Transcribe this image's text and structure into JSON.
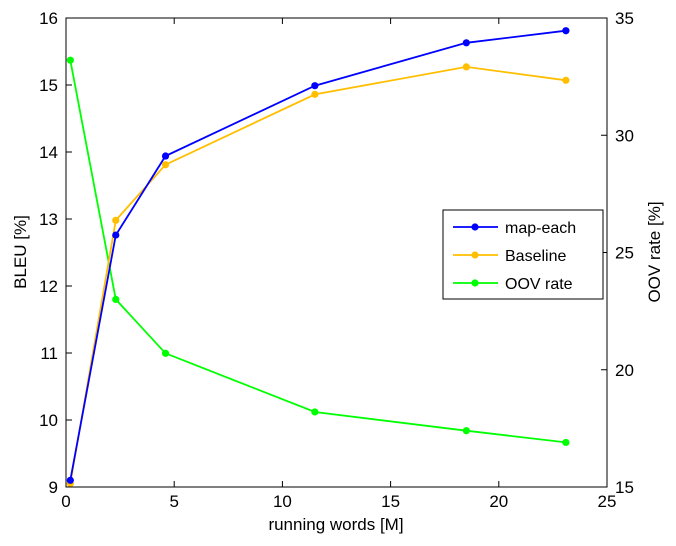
{
  "chart_data": {
    "type": "line",
    "xlabel": "running words [M]",
    "ylabel": "BLEU [%]",
    "y2label": "OOV rate [%]",
    "xlim": [
      0,
      25
    ],
    "ylim": [
      9,
      16
    ],
    "y2lim": [
      15,
      35
    ],
    "xticks": [
      0,
      5,
      10,
      15,
      20,
      25
    ],
    "yticks": [
      9,
      10,
      11,
      12,
      13,
      14,
      15,
      16
    ],
    "y2ticks": [
      15,
      20,
      25,
      30,
      35
    ],
    "grid": false,
    "legend_position": "right",
    "x": [
      0.2,
      2.3,
      4.6,
      11.5,
      18.5,
      23.1
    ],
    "series": [
      {
        "name": "map-each",
        "axis": "left",
        "color": "#0000ff",
        "values": [
          9.1,
          12.76,
          13.94,
          14.99,
          15.63,
          15.81
        ]
      },
      {
        "name": "Baseline",
        "axis": "left",
        "color": "#ffbf00",
        "values": [
          9.05,
          12.98,
          13.81,
          14.86,
          15.27,
          15.07
        ]
      },
      {
        "name": "OOV rate",
        "axis": "right",
        "color": "#00ff00",
        "values": [
          33.2,
          23.0,
          20.7,
          18.2,
          17.4,
          16.9
        ]
      }
    ]
  }
}
